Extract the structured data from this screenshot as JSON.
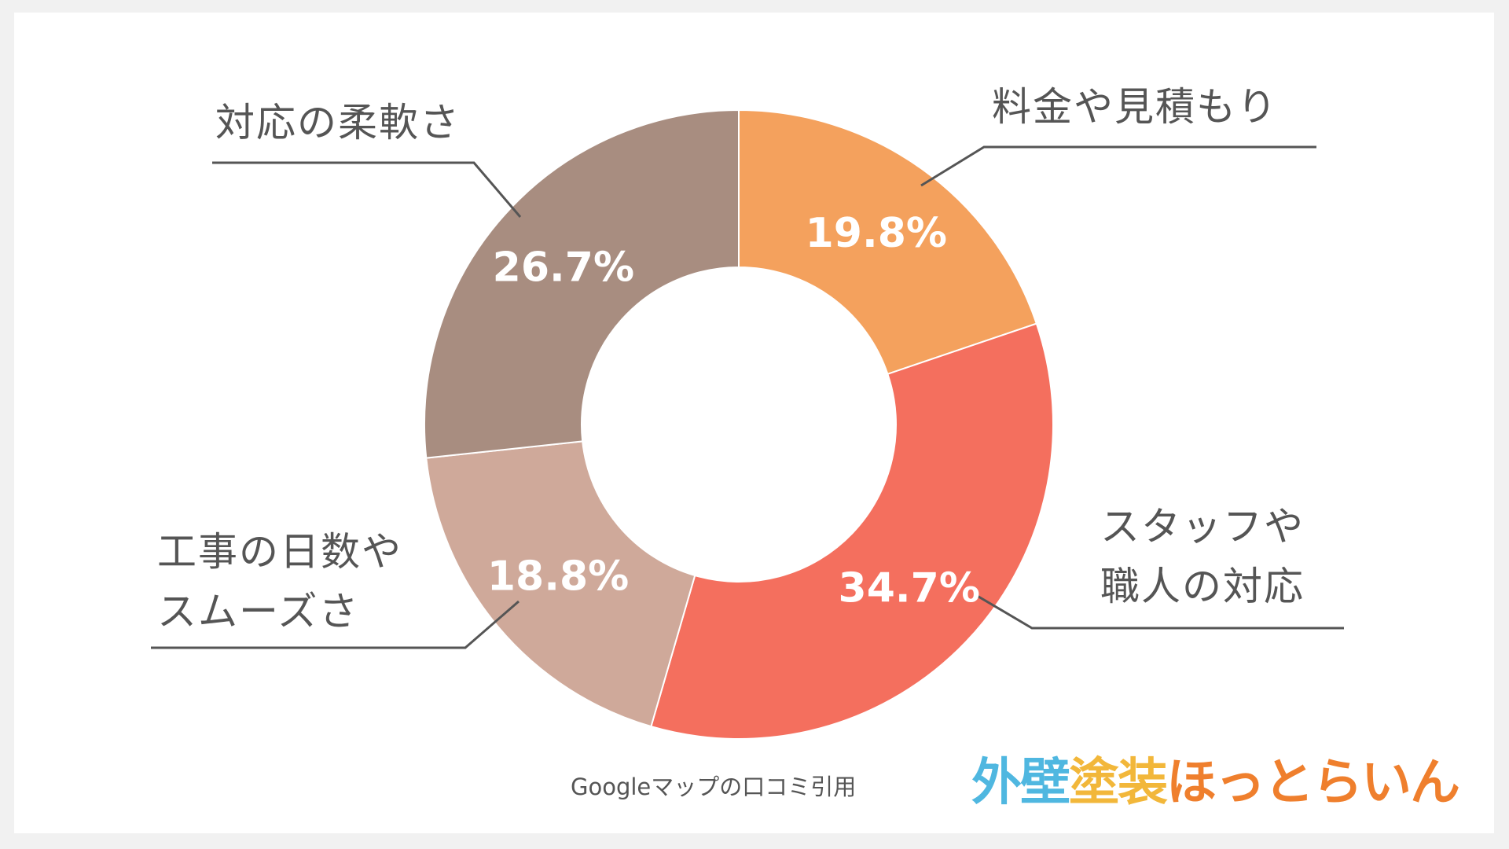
{
  "chart_data": {
    "type": "pie",
    "donut": true,
    "title": "",
    "slices": [
      {
        "label": "料金や見積もり",
        "value": 19.8,
        "display": "19.8%",
        "color": "#f4a15d"
      },
      {
        "label": "スタッフや\n職人の対応",
        "value": 34.7,
        "display": "34.7%",
        "color": "#f46f5e"
      },
      {
        "label": "工事の日数や\nスムーズさ",
        "value": 18.8,
        "display": "18.8%",
        "color": "#cfa99a"
      },
      {
        "label": "対応の柔軟さ",
        "value": 26.7,
        "display": "26.7%",
        "color": "#a88d80"
      }
    ]
  },
  "source_text": "Googleマップの口コミ引用",
  "logo": {
    "part1": "外壁",
    "part2": "塗装",
    "part3": "ほっとらいん",
    "colors": {
      "part1": "#4fb7e0",
      "part2": "#f2b73a",
      "part3": "#ef7f2d"
    }
  }
}
